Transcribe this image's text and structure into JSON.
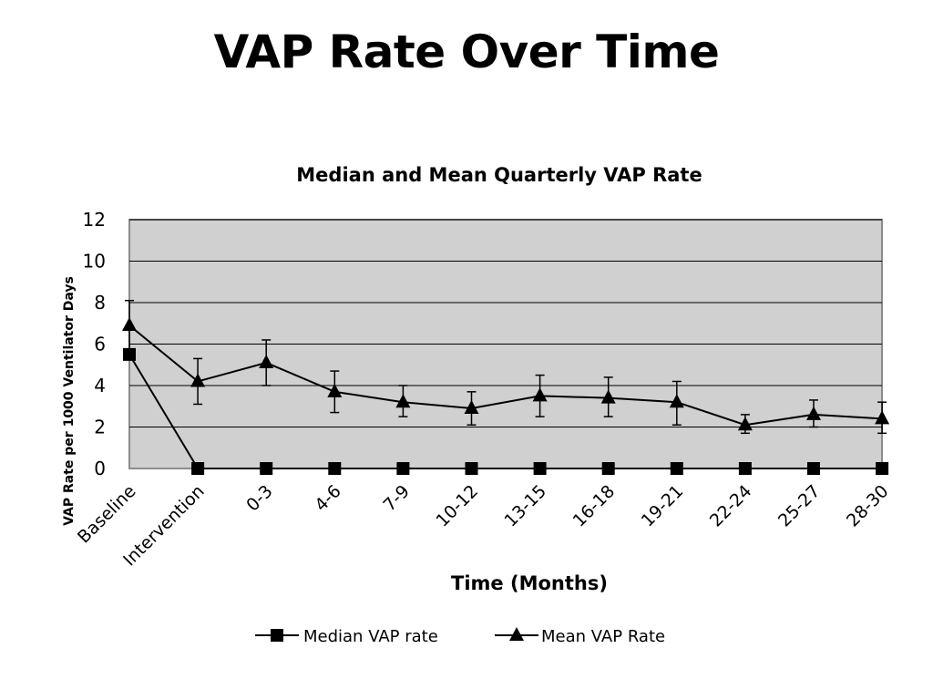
{
  "slide": {
    "title": "VAP Rate Over Time"
  },
  "chart_data": {
    "type": "line",
    "title": "Median and Mean Quarterly VAP Rate",
    "xlabel": "Time (Months)",
    "ylabel": "VAP Rate per 1000 Ventilator Days",
    "ylim": [
      0,
      12
    ],
    "yticks": [
      "0",
      "2",
      "4",
      "6",
      "8",
      "10",
      "12"
    ],
    "grid": true,
    "legend_position": "bottom",
    "categories": [
      "Baseline",
      "Intervention",
      "0-3",
      "4-6",
      "7-9",
      "10-12",
      "13-15",
      "16-18",
      "19-21",
      "22-24",
      "25-27",
      "28-30"
    ],
    "series": [
      {
        "name": "Median VAP rate",
        "marker": "square",
        "values": [
          5.5,
          0,
          0,
          0,
          0,
          0,
          0,
          0,
          0,
          0,
          0,
          0
        ]
      },
      {
        "name": "Mean VAP Rate",
        "marker": "triangle",
        "values": [
          6.9,
          4.2,
          5.1,
          3.7,
          3.2,
          2.9,
          3.5,
          3.4,
          3.2,
          2.1,
          2.6,
          2.4
        ],
        "error_low": [
          5.7,
          3.1,
          4.0,
          2.7,
          2.5,
          2.1,
          2.5,
          2.5,
          2.1,
          1.7,
          2.0,
          1.7
        ],
        "error_high": [
          8.1,
          5.3,
          6.2,
          4.7,
          4.0,
          3.7,
          4.5,
          4.4,
          4.2,
          2.6,
          3.3,
          3.2
        ]
      }
    ],
    "colors": {
      "plot_background": "#d0d0d0",
      "line": "#000000",
      "grid": "#000000"
    }
  }
}
